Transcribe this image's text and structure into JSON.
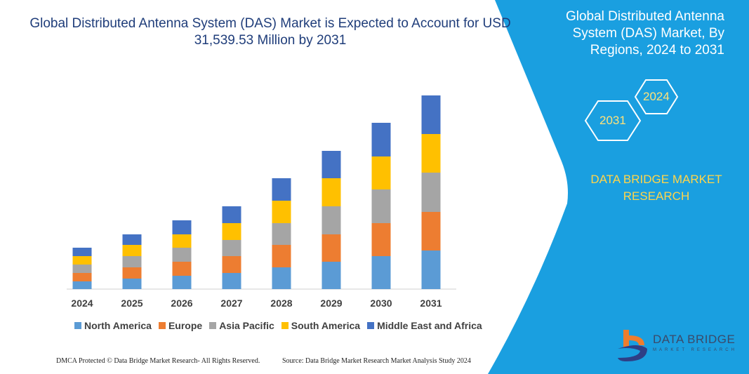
{
  "header": {
    "title": "Global Distributed Antenna System (DAS) Market is Expected to Account for USD 31,539.53 Million by 2031"
  },
  "side_panel": {
    "title": "Global Distributed Antenna System (DAS) Market, By Regions, 2024 to 2031",
    "hex_labels": [
      "2024",
      "2031"
    ],
    "brand": "DATA BRIDGE MARKET RESEARCH",
    "logo_text": "DATA BRIDGE",
    "logo_sub": "MARKET RESEARCH",
    "color": "#1a9fe0"
  },
  "footer": {
    "left": "DMCA Protected © Data Bridge Market Research-  All Rights Reserved.",
    "right": "Source: Data Bridge Market Research  Market Analysis Study 2024"
  },
  "chart_data": {
    "type": "bar",
    "stacked": true,
    "title": "",
    "xlabel": "",
    "ylabel": "",
    "grid": false,
    "legend_position": "bottom",
    "note_units": "relative (no value axis shown)",
    "categories": [
      "2024",
      "2025",
      "2026",
      "2027",
      "2028",
      "2029",
      "2030",
      "2031"
    ],
    "series": [
      {
        "name": "North America",
        "color": "#5b9bd5",
        "values": [
          11,
          15,
          19,
          23,
          31,
          39,
          47,
          55
        ]
      },
      {
        "name": "Europe",
        "color": "#ed7d31",
        "values": [
          12,
          16,
          20,
          24,
          32,
          39,
          47,
          55
        ]
      },
      {
        "name": "Asia Pacific",
        "color": "#a5a5a5",
        "values": [
          12,
          16,
          20,
          23,
          31,
          40,
          48,
          56
        ]
      },
      {
        "name": "South America",
        "color": "#ffc000",
        "values": [
          12,
          16,
          19,
          24,
          32,
          40,
          47,
          55
        ]
      },
      {
        "name": "Middle East and Africa",
        "color": "#4472c4",
        "values": [
          12,
          15,
          20,
          24,
          32,
          39,
          48,
          55
        ]
      }
    ]
  }
}
